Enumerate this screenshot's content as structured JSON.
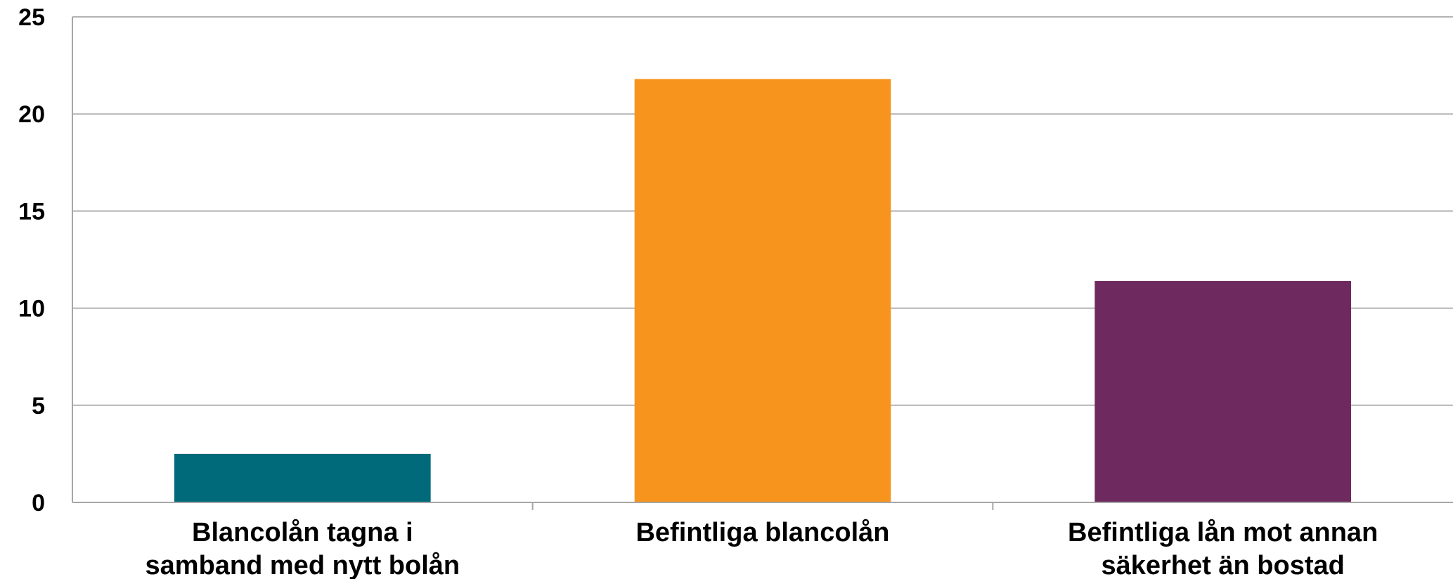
{
  "chart_data": {
    "type": "bar",
    "title": "",
    "xlabel": "",
    "ylabel": "",
    "ylim": [
      0,
      25
    ],
    "yticks": [
      0,
      5,
      10,
      15,
      20,
      25
    ],
    "grid": true,
    "legend": "none",
    "categories": [
      [
        "Blancolån tagna i",
        "samband med nytt bolån"
      ],
      [
        "Befintliga blancolån"
      ],
      [
        "Befintliga lån mot annan",
        "säkerhet än bostad"
      ]
    ],
    "values": [
      2.5,
      21.8,
      11.4
    ],
    "colors": [
      "#006a7a",
      "#f7941d",
      "#6e2a5f"
    ],
    "gridline_color": "#b3b3b3",
    "axis_color": "#a6a6a6"
  }
}
